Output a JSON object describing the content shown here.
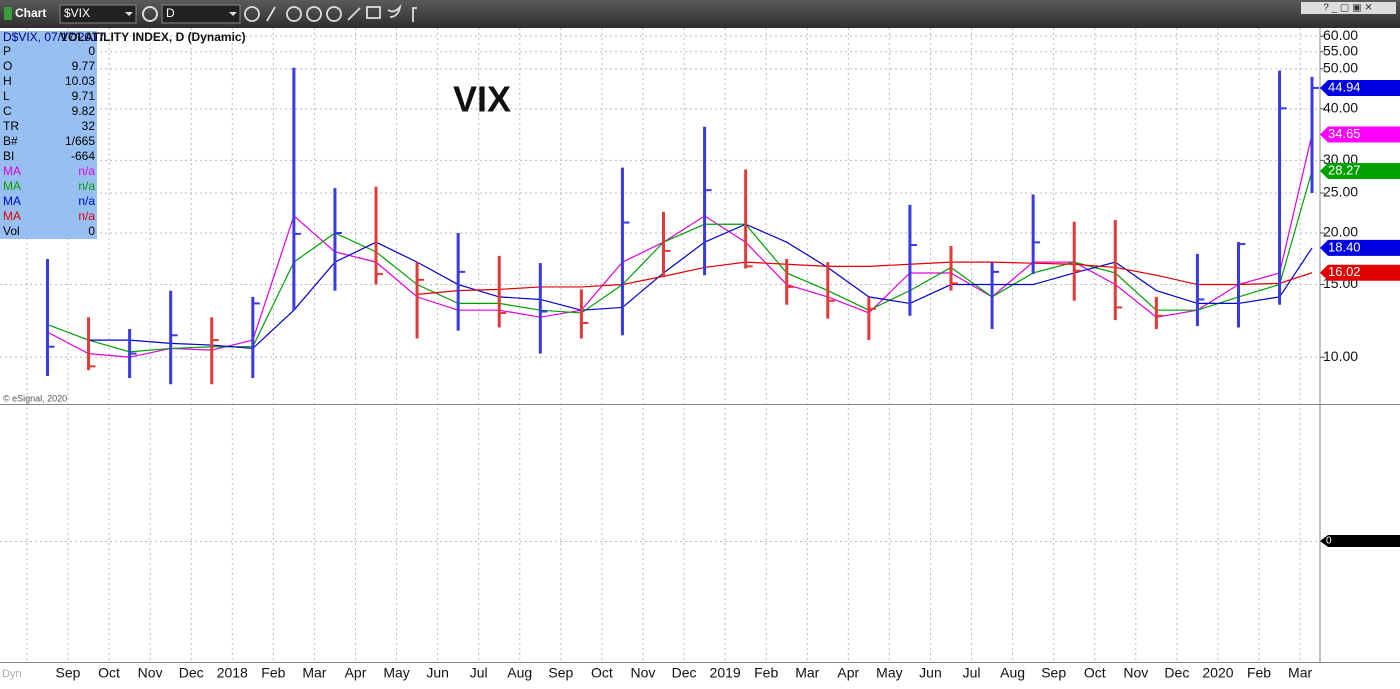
{
  "toolbar": {
    "app": "Chart",
    "symbol": "$VIX",
    "interval": "D"
  },
  "info_panel": {
    "date": "D$VIX, 07/17/2017",
    "rows": [
      {
        "label": "P",
        "value": 0
      },
      {
        "label": "O",
        "value": 9.77
      },
      {
        "label": "H",
        "value": 10.03
      },
      {
        "label": "L",
        "value": 9.71
      },
      {
        "label": "C",
        "value": 9.82
      },
      {
        "label": "TR",
        "value": 32
      },
      {
        "label": "B#",
        "value": "1/665"
      },
      {
        "label": "BI",
        "value": -664
      },
      {
        "label": "MA",
        "value": "n/a",
        "color": "#e000e0"
      },
      {
        "label": "MA",
        "value": "n/a",
        "color": "#00a000"
      },
      {
        "label": "MA",
        "value": "n/a",
        "color": "#0000d0"
      },
      {
        "label": "MA",
        "value": "n/a",
        "color": "#e00000"
      },
      {
        "label": "Vol",
        "value": 0
      }
    ]
  },
  "watermark": "© eSignal, 2020",
  "panel_mode": "Dyn",
  "chart_data": {
    "type": "ohlc",
    "title": "VOLATILITY INDEX, D (Dynamic)",
    "annotation": "VIX",
    "log_scale": true,
    "grid": true,
    "categories": [
      null,
      "Sep",
      "Oct",
      "Nov",
      "Dec",
      "2018",
      "Feb",
      "Mar",
      "Apr",
      "May",
      "Jun",
      "Jul",
      "Aug",
      "Sep",
      "Oct",
      "Nov",
      "Dec",
      "2019",
      "Feb",
      "Mar",
      "Apr",
      "May",
      "Jun",
      "Jul",
      "Aug",
      "Sep",
      "Oct",
      "Nov",
      "Dec",
      "2020",
      "Feb",
      "Mar"
    ],
    "ylim": [
      7.7,
      62.8
    ],
    "yticks": [
      {
        "value": 10,
        "label": "10.00"
      },
      {
        "value": 15,
        "label": "15.00"
      },
      {
        "value": 20,
        "label": "20.00"
      },
      {
        "value": 25,
        "label": "25.00"
      },
      {
        "value": 30,
        "label": "30.00"
      },
      {
        "value": 40,
        "label": "40.00"
      },
      {
        "value": 50,
        "label": "50.00"
      },
      {
        "value": 55,
        "label": "55.00"
      },
      {
        "value": 60,
        "label": "60.00"
      }
    ],
    "series": [
      {
        "up_color": "#3a3ae0",
        "down_color": "#e03a3a",
        "high": [
          17.3,
          12.5,
          11.7,
          14.5,
          12.5,
          14.0,
          50.3,
          25.7,
          25.9,
          17.0,
          20.0,
          17.6,
          16.9,
          14.6,
          28.8,
          22.5,
          36.2,
          28.5,
          17.3,
          17.0,
          14.0,
          23.4,
          18.6,
          17.0,
          24.8,
          21.3,
          21.5,
          14.0,
          17.8,
          19.0,
          49.5,
          47.8
        ],
        "low": [
          9.0,
          9.3,
          8.9,
          8.6,
          8.6,
          8.9,
          13.0,
          14.5,
          15.0,
          11.1,
          11.6,
          11.8,
          10.2,
          11.1,
          11.3,
          15.7,
          15.8,
          16.4,
          13.4,
          12.4,
          11.0,
          12.6,
          14.5,
          11.7,
          15.9,
          13.7,
          12.3,
          11.7,
          11.9,
          11.8,
          13.4,
          25.0
        ],
        "close": [
          10.6,
          9.5,
          10.2,
          11.3,
          11.0,
          13.5,
          19.9,
          20.0,
          15.9,
          15.4,
          16.1,
          12.8,
          12.9,
          12.1,
          21.2,
          18.1,
          25.4,
          16.6,
          14.8,
          13.7,
          13.1,
          18.7,
          15.1,
          16.1,
          18.98,
          16.2,
          13.2,
          12.6,
          13.8,
          18.8,
          40.1,
          44.94
        ],
        "badge": {
          "value": 44.94,
          "label": "44.94",
          "color": "#0000e0"
        }
      }
    ],
    "moving_averages": [
      {
        "color": "#e000e0",
        "values": [
          11.5,
          10.2,
          10.0,
          10.5,
          10.4,
          11.0,
          22,
          18,
          17,
          14,
          13,
          13,
          12.5,
          13,
          17,
          19,
          22,
          19,
          15,
          14,
          12.8,
          16,
          16,
          14,
          17,
          17,
          15,
          12.5,
          13,
          15,
          16,
          34.65
        ],
        "badge": {
          "value": 34.65,
          "label": "34.65",
          "color": "#ff00ff"
        }
      },
      {
        "color": "#00a000",
        "values": [
          12,
          11,
          10.3,
          10.5,
          10.6,
          10.6,
          17,
          20,
          18,
          15,
          13.5,
          13.5,
          13,
          12.8,
          15,
          19,
          21,
          21,
          16,
          14.5,
          13,
          14.5,
          16.5,
          14,
          16,
          17,
          16,
          13,
          13,
          14,
          15,
          28.27
        ],
        "badge": {
          "value": 28.27,
          "label": "28.27",
          "color": "#00a000"
        }
      },
      {
        "color": "#0000d0",
        "values": [
          null,
          11,
          11,
          10.8,
          10.7,
          10.5,
          13,
          17,
          19,
          17,
          15,
          14,
          13.8,
          13,
          13.2,
          16,
          19,
          21,
          19,
          16.5,
          14,
          13.5,
          15,
          15,
          15,
          16,
          17,
          14.5,
          13.5,
          13.5,
          14,
          18.4
        ],
        "badge": {
          "value": 18.4,
          "label": "18.40",
          "color": "#0000e0"
        }
      },
      {
        "color": "#e00000",
        "values": [
          null,
          null,
          null,
          null,
          null,
          null,
          null,
          null,
          null,
          14.2,
          14.5,
          14.6,
          14.8,
          14.8,
          15.0,
          15.7,
          16.5,
          17.0,
          16.8,
          16.6,
          16.6,
          16.8,
          17.0,
          17.0,
          16.9,
          16.8,
          16.5,
          15.8,
          15.0,
          15.0,
          15.1,
          16.02
        ],
        "badge": {
          "value": 16.02,
          "label": "16.02",
          "color": "#e00000"
        }
      }
    ],
    "lower_panel": {
      "badge": 0
    }
  }
}
